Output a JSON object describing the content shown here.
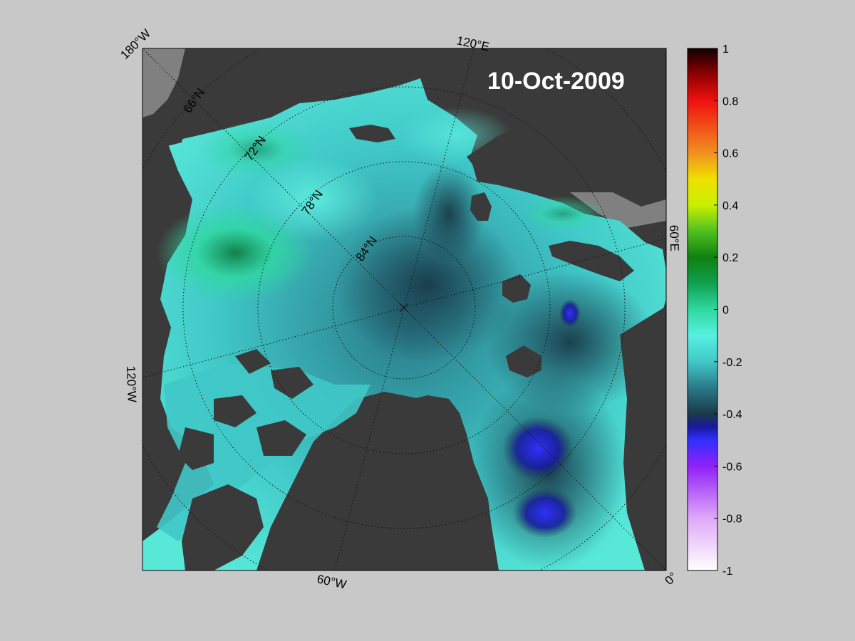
{
  "map": {
    "date_label": "10-Oct-2009",
    "projection": "north-polar-stereographic",
    "land_color": "#3a3a3a",
    "missing_color": "#808080",
    "longitude_labels": [
      "180°W",
      "120°E",
      "60°E",
      "0°",
      "60°W",
      "120°W"
    ],
    "latitude_labels": [
      "66°N",
      "72°N",
      "78°N",
      "84°N"
    ]
  },
  "colorbar": {
    "min": -1,
    "max": 1,
    "tick_labels": [
      "1",
      "0.8",
      "0.6",
      "0.4",
      "0.2",
      "0",
      "-0.2",
      "-0.4",
      "-0.6",
      "-0.8",
      "-1"
    ],
    "colormap": [
      {
        "v": -1.0,
        "c": "#ffffff"
      },
      {
        "v": -0.8,
        "c": "#e0a8f8"
      },
      {
        "v": -0.6,
        "c": "#9020f8"
      },
      {
        "v": -0.5,
        "c": "#3030ff"
      },
      {
        "v": -0.45,
        "c": "#1818a0"
      },
      {
        "v": -0.4,
        "c": "#1a3a4a"
      },
      {
        "v": -0.3,
        "c": "#2a7a88"
      },
      {
        "v": -0.2,
        "c": "#40c8c8"
      },
      {
        "v": -0.1,
        "c": "#58f0e0"
      },
      {
        "v": 0.0,
        "c": "#30d8a0"
      },
      {
        "v": 0.1,
        "c": "#10a050"
      },
      {
        "v": 0.2,
        "c": "#108010"
      },
      {
        "v": 0.3,
        "c": "#50c020"
      },
      {
        "v": 0.4,
        "c": "#c8f000"
      },
      {
        "v": 0.5,
        "c": "#f0e000"
      },
      {
        "v": 0.6,
        "c": "#f09020"
      },
      {
        "v": 0.8,
        "c": "#f01010"
      },
      {
        "v": 0.9,
        "c": "#900000"
      },
      {
        "v": 1.0,
        "c": "#100000"
      }
    ]
  }
}
